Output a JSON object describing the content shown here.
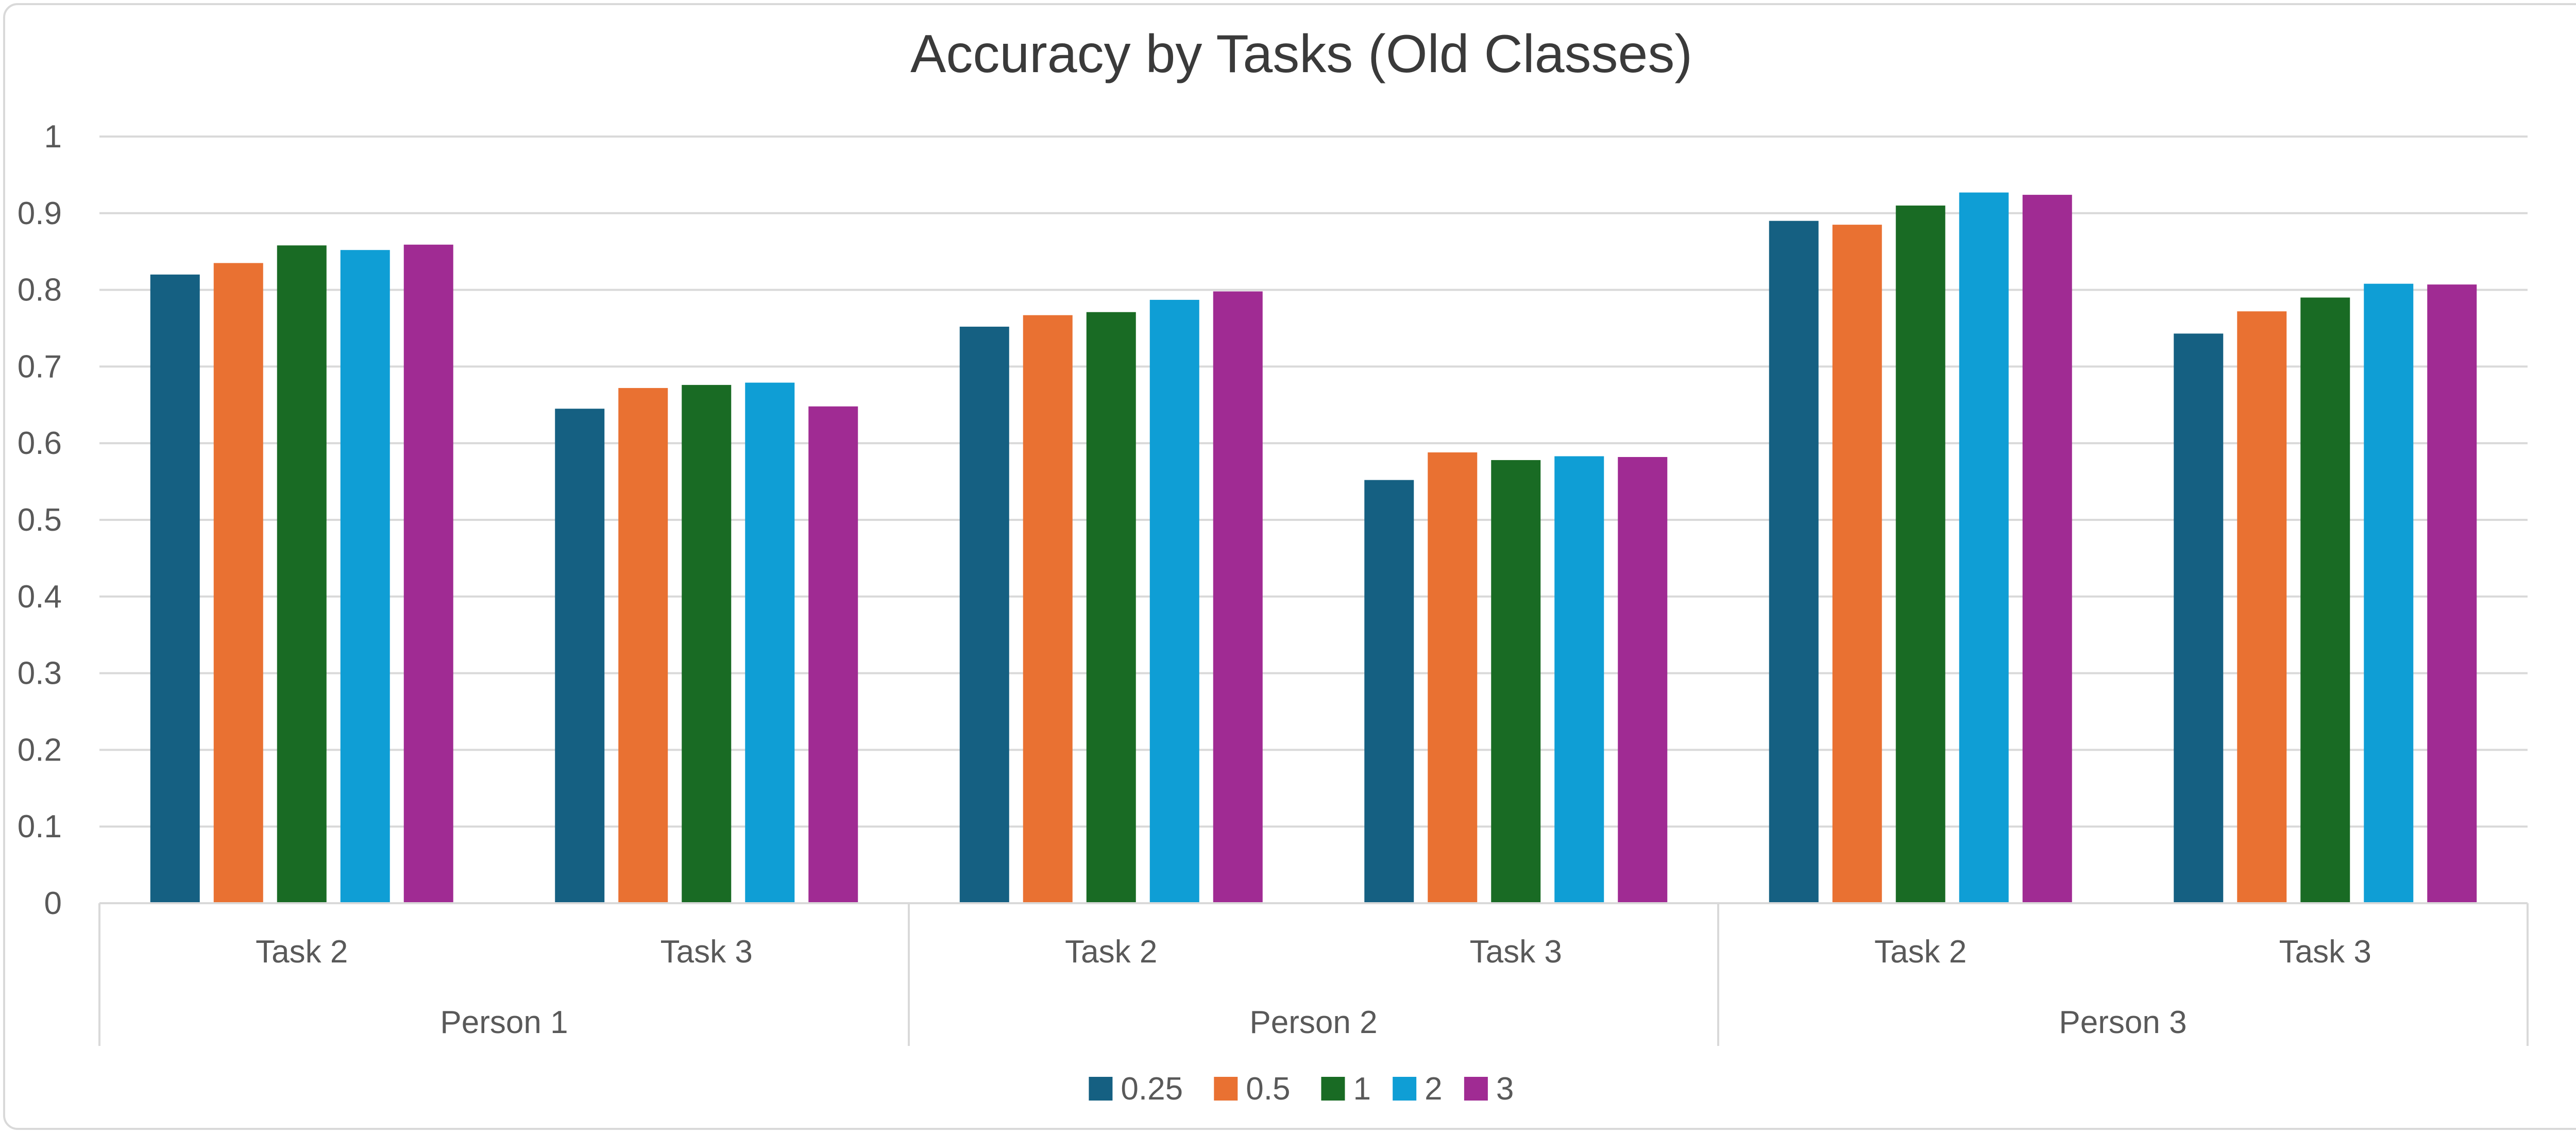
{
  "chart_data": {
    "type": "bar",
    "title": "Accuracy by Tasks (Old Classes)",
    "xlabel": "",
    "ylabel": "",
    "ylim": [
      0,
      1
    ],
    "yticks": [
      "0",
      "0.1",
      "0.2",
      "0.3",
      "0.4",
      "0.5",
      "0.6",
      "0.7",
      "0.8",
      "0.9",
      "1"
    ],
    "grid": true,
    "legend_position": "bottom",
    "groups": [
      "Person 1",
      "Person 2",
      "Person 3"
    ],
    "categories": [
      "Task 2",
      "Task 3",
      "Task 2",
      "Task 3",
      "Task 2",
      "Task 3"
    ],
    "series": [
      {
        "name": "0.25",
        "color": "#156082",
        "values": [
          0.82,
          0.645,
          0.752,
          0.552,
          0.89,
          0.743
        ]
      },
      {
        "name": "0.5",
        "color": "#E97132",
        "values": [
          0.835,
          0.672,
          0.767,
          0.588,
          0.885,
          0.772
        ]
      },
      {
        "name": "1",
        "color": "#196B24",
        "values": [
          0.858,
          0.676,
          0.771,
          0.578,
          0.91,
          0.79
        ]
      },
      {
        "name": "2",
        "color": "#0F9ED5",
        "values": [
          0.852,
          0.679,
          0.787,
          0.583,
          0.927,
          0.808
        ]
      },
      {
        "name": "3",
        "color": "#A02B93",
        "values": [
          0.859,
          0.648,
          0.798,
          0.582,
          0.924,
          0.807
        ]
      }
    ]
  }
}
